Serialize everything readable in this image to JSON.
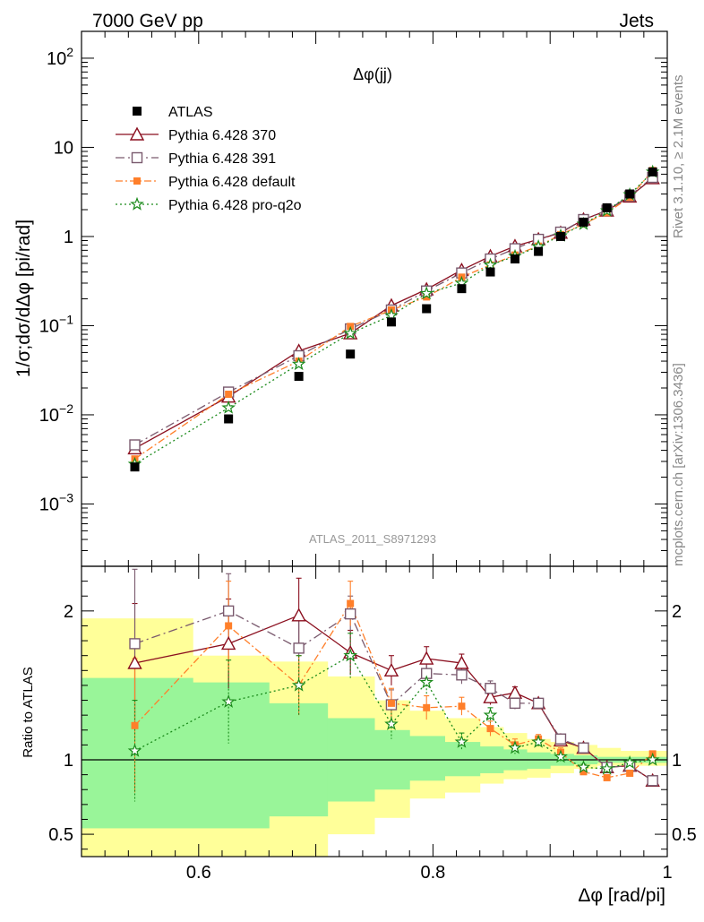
{
  "header": {
    "left": "7000 GeV pp",
    "right": "Jets",
    "side_top": "Rivet 3.1.10, ≥ 2.1M events",
    "side_bottom": "mcplots.cern.ch [arXiv:1306.3436]"
  },
  "colors": {
    "atlas": "#000000",
    "p370": "#8b0f1f",
    "p391": "#7a5a6e",
    "pdefault": "#ff7f2a",
    "pq2o": "#1a8a1a",
    "band_inner": "#99f599",
    "band_outer": "#ffff99"
  },
  "chart_data": [
    {
      "type": "scatter",
      "title": "Δφ(jj)",
      "ylabel": "1/σ;dσ/dΔφ [pi/rad]",
      "xlabel": "",
      "watermark": "ATLAS_2011_S8971293",
      "yscale": "log",
      "xlim": [
        0.5,
        1.0
      ],
      "ylim": [
        0.0002,
        200
      ],
      "yticks": [
        {
          "v": 0.001,
          "m": "10",
          "e": "−3"
        },
        {
          "v": 0.01,
          "m": "10",
          "e": "−2"
        },
        {
          "v": 0.1,
          "m": "10",
          "e": "−1"
        },
        {
          "v": 1,
          "m": "1",
          "e": ""
        },
        {
          "v": 10,
          "m": "10",
          "e": ""
        },
        {
          "v": 100,
          "m": "10",
          "e": "2"
        }
      ],
      "legend": [
        "ATLAS",
        "Pythia 6.428 370",
        "Pythia 6.428 391",
        "Pythia 6.428 default",
        "Pythia 6.428 pro-q2o"
      ],
      "x": [
        0.5455,
        0.6255,
        0.6855,
        0.7295,
        0.7645,
        0.7945,
        0.8245,
        0.849,
        0.87,
        0.89,
        0.909,
        0.9285,
        0.9485,
        0.968,
        0.9875
      ],
      "series": [
        {
          "name": "ATLAS",
          "values": [
            0.0026,
            0.009,
            0.027,
            0.048,
            0.11,
            0.155,
            0.26,
            0.4,
            0.56,
            0.68,
            1.0,
            1.45,
            2.1,
            3.0,
            5.3
          ]
        },
        {
          "name": "Pythia 6.428 370",
          "values": [
            0.0042,
            0.016,
            0.052,
            0.082,
            0.168,
            0.255,
            0.42,
            0.6,
            0.78,
            0.93,
            1.1,
            1.55,
            1.95,
            2.8,
            4.5
          ]
        },
        {
          "name": "Pythia 6.428 391",
          "values": [
            0.0046,
            0.018,
            0.046,
            0.092,
            0.15,
            0.245,
            0.39,
            0.56,
            0.73,
            0.93,
            1.12,
            1.55,
            1.97,
            2.85,
            4.6
          ]
        },
        {
          "name": "Pythia 6.428 default",
          "values": [
            0.0032,
            0.017,
            0.04,
            0.098,
            0.15,
            0.21,
            0.35,
            0.48,
            0.62,
            0.78,
            1.05,
            1.38,
            1.85,
            2.75,
            5.5
          ]
        },
        {
          "name": "Pythia 6.428 pro-q2o",
          "values": [
            0.0028,
            0.012,
            0.037,
            0.082,
            0.13,
            0.23,
            0.3,
            0.48,
            0.6,
            0.77,
            1.02,
            1.38,
            1.95,
            2.95,
            5.3
          ]
        }
      ]
    },
    {
      "type": "scatter",
      "ylabel": "Ratio to ATLAS",
      "xlabel": "Δφ [rad/pi]",
      "xlim": [
        0.5,
        1.0
      ],
      "ylim": [
        0.35,
        2.3
      ],
      "xticks": [
        "0.6",
        "0.8",
        "1"
      ],
      "yticks": [
        "0.5",
        "1",
        "2"
      ],
      "bands": {
        "edges": [
          0.5,
          0.595,
          0.66,
          0.71,
          0.75,
          0.78,
          0.81,
          0.84,
          0.86,
          0.88,
          0.9,
          0.92,
          0.94,
          0.96,
          0.98,
          1.0
        ],
        "inner_lo": [
          0.54,
          0.54,
          0.62,
          0.72,
          0.8,
          0.86,
          0.89,
          0.91,
          0.93,
          0.94,
          0.96,
          0.97,
          0.98,
          0.98,
          0.98
        ],
        "inner_hi": [
          1.55,
          1.52,
          1.38,
          1.28,
          1.2,
          1.16,
          1.12,
          1.09,
          1.07,
          1.05,
          1.04,
          1.03,
          1.02,
          1.02,
          1.02
        ],
        "outer_lo": [
          0.35,
          0.35,
          0.35,
          0.5,
          0.61,
          0.74,
          0.78,
          0.84,
          0.87,
          0.88,
          0.91,
          0.94,
          0.96,
          0.96,
          0.96
        ],
        "outer_hi": [
          1.95,
          1.7,
          1.66,
          1.56,
          1.4,
          1.33,
          1.28,
          1.22,
          1.18,
          1.14,
          1.12,
          1.1,
          1.08,
          1.06,
          1.06
        ]
      },
      "series": [
        {
          "name": "Pythia 6.428 370",
          "values": [
            1.65,
            1.78,
            1.97,
            1.72,
            1.6,
            1.68,
            1.65,
            1.42,
            1.45,
            1.38,
            1.13,
            1.08,
            0.95,
            0.96,
            0.86
          ],
          "err": [
            0.4,
            0.3,
            0.25,
            0.15,
            0.1,
            0.08,
            0.06,
            0.05,
            0.04,
            0.03,
            0.03,
            0.02,
            0.02,
            0.02,
            0.01
          ]
        },
        {
          "name": "Pythia 6.428 391",
          "values": [
            1.78,
            2.0,
            1.75,
            1.98,
            1.37,
            1.58,
            1.57,
            1.48,
            1.38,
            1.38,
            1.14,
            1.08,
            0.95,
            0.96,
            0.86
          ],
          "err": [
            0.5,
            0.25,
            0.2,
            0.12,
            0.1,
            0.07,
            0.06,
            0.05,
            0.04,
            0.03,
            0.03,
            0.02,
            0.02,
            0.02,
            0.01
          ]
        },
        {
          "name": "Pythia 6.428 default",
          "values": [
            1.23,
            1.9,
            1.5,
            2.05,
            1.38,
            1.35,
            1.36,
            1.21,
            1.1,
            1.14,
            1.05,
            0.92,
            0.88,
            0.91,
            1.04
          ],
          "err": [
            0.45,
            0.3,
            0.2,
            0.15,
            0.1,
            0.08,
            0.06,
            0.05,
            0.04,
            0.03,
            0.03,
            0.02,
            0.02,
            0.02,
            0.01
          ]
        },
        {
          "name": "Pythia 6.428 pro-q2o",
          "values": [
            1.06,
            1.39,
            1.5,
            1.7,
            1.24,
            1.52,
            1.12,
            1.3,
            1.08,
            1.12,
            1.02,
            0.95,
            0.94,
            0.98,
            1.0
          ],
          "err": [
            0.34,
            0.28,
            0.2,
            0.15,
            0.1,
            0.08,
            0.06,
            0.05,
            0.04,
            0.03,
            0.03,
            0.02,
            0.02,
            0.02,
            0.01
          ]
        }
      ]
    }
  ]
}
